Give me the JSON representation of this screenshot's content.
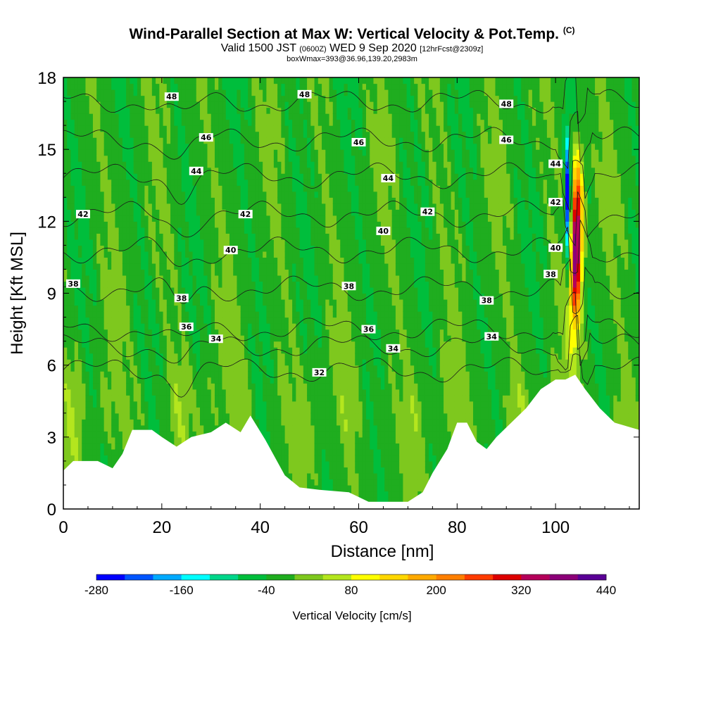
{
  "title": {
    "main": "Wind-Parallel Section at Max W: Vertical Velocity & Pot.Temp.",
    "copyright": "(C)",
    "valid_prefix": "Valid 1500 JST",
    "valid_utc": "(0600Z)",
    "valid_date": "WED 9 Sep 2020",
    "forecast": "[12hrFcst@2309z]",
    "box_info": "boxWmax=393@36.96,139.20,2983m"
  },
  "chart_data": {
    "type": "heatmap",
    "xlabel": "Distance [nm]",
    "ylabel": "Height [Kft MSL]",
    "xlim": [
      0,
      117
    ],
    "ylim": [
      0,
      18
    ],
    "x_ticks": [
      0,
      20,
      40,
      60,
      80,
      100
    ],
    "y_ticks": [
      0,
      3,
      6,
      9,
      12,
      15,
      18
    ],
    "colorbar": {
      "label": "Vertical Velocity [cm/s]",
      "min": -280,
      "max": 440,
      "step": 40,
      "tick_labels": [
        "-280",
        "-160",
        "-40",
        "80",
        "200",
        "320",
        "440"
      ],
      "tick_values": [
        -280,
        -160,
        -40,
        80,
        200,
        320,
        440
      ],
      "colors": [
        "#0000ff",
        "#0055ff",
        "#00aaff",
        "#00ffff",
        "#00d68a",
        "#00be3c",
        "#1fad1f",
        "#7ec81e",
        "#b4e61e",
        "#ffff00",
        "#ffd700",
        "#ffaa00",
        "#ff7f00",
        "#ff3c00",
        "#dd0000",
        "#b4005a",
        "#8c0078",
        "#5a0096"
      ]
    },
    "terrain_kft": {
      "x": [
        0,
        2,
        7,
        10,
        12,
        14,
        18,
        20,
        23,
        26,
        30,
        33,
        36,
        38,
        41,
        45,
        48,
        52,
        58,
        62,
        66,
        70,
        73,
        75,
        78,
        80,
        82,
        84,
        86,
        88,
        91,
        94,
        97,
        100,
        102,
        104,
        106,
        109,
        112,
        117
      ],
      "y": [
        1.6,
        2.0,
        2.0,
        1.7,
        2.3,
        3.3,
        3.3,
        3.0,
        2.6,
        3.0,
        3.2,
        3.6,
        3.2,
        3.9,
        2.9,
        1.4,
        0.9,
        0.8,
        0.7,
        0.3,
        0.3,
        0.3,
        0.7,
        1.5,
        2.5,
        3.6,
        3.6,
        2.8,
        2.5,
        3.0,
        3.6,
        4.2,
        5.0,
        5.4,
        5.4,
        5.6,
        5.0,
        4.2,
        3.6,
        3.3
      ]
    },
    "theta_contours_K": [
      {
        "label": "32",
        "base": 5.8,
        "anno": [
          [
            52,
            5.7
          ]
        ]
      },
      {
        "label": "34",
        "base": 6.8,
        "anno": [
          [
            31,
            7.1
          ],
          [
            67,
            6.7
          ],
          [
            87,
            7.2
          ]
        ]
      },
      {
        "label": "36",
        "base": 7.5,
        "anno": [
          [
            25,
            7.6
          ],
          [
            62,
            7.5
          ]
        ]
      },
      {
        "label": "38",
        "base": 9.2,
        "anno": [
          [
            2,
            9.4
          ],
          [
            24,
            8.8
          ],
          [
            58,
            9.3
          ],
          [
            86,
            8.7
          ],
          [
            99,
            9.8
          ]
        ]
      },
      {
        "label": "40",
        "base": 10.8,
        "anno": [
          [
            34,
            10.8
          ],
          [
            65,
            11.6
          ],
          [
            100,
            10.9
          ]
        ]
      },
      {
        "label": "42",
        "base": 12.3,
        "anno": [
          [
            4,
            12.3
          ],
          [
            37,
            12.3
          ],
          [
            74,
            12.4
          ],
          [
            100,
            12.8
          ]
        ]
      },
      {
        "label": "44",
        "base": 13.9,
        "anno": [
          [
            27,
            14.1
          ],
          [
            66,
            13.8
          ],
          [
            100,
            14.4
          ]
        ]
      },
      {
        "label": "46",
        "base": 15.4,
        "anno": [
          [
            29,
            15.5
          ],
          [
            60,
            15.3
          ],
          [
            90,
            15.4
          ]
        ]
      },
      {
        "label": "48",
        "base": 17.0,
        "anno": [
          [
            22,
            17.2
          ],
          [
            49,
            17.3
          ],
          [
            90,
            16.9
          ]
        ]
      }
    ]
  }
}
